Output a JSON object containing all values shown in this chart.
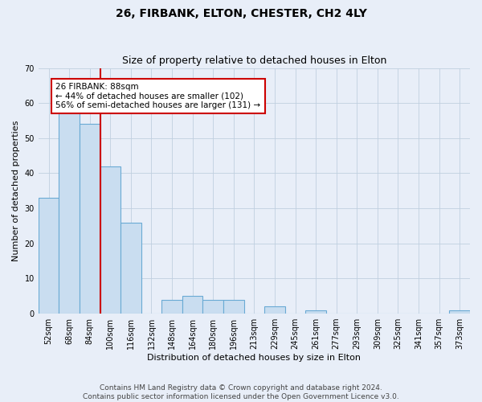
{
  "title": "26, FIRBANK, ELTON, CHESTER, CH2 4LY",
  "subtitle": "Size of property relative to detached houses in Elton",
  "xlabel": "Distribution of detached houses by size in Elton",
  "ylabel": "Number of detached properties",
  "categories": [
    "52sqm",
    "68sqm",
    "84sqm",
    "100sqm",
    "116sqm",
    "132sqm",
    "148sqm",
    "164sqm",
    "180sqm",
    "196sqm",
    "213sqm",
    "229sqm",
    "245sqm",
    "261sqm",
    "277sqm",
    "293sqm",
    "309sqm",
    "325sqm",
    "341sqm",
    "357sqm",
    "373sqm"
  ],
  "values": [
    33,
    58,
    54,
    42,
    26,
    0,
    4,
    5,
    4,
    4,
    0,
    2,
    0,
    1,
    0,
    0,
    0,
    0,
    0,
    0,
    1
  ],
  "bar_color": "#c9ddf0",
  "bar_edge_color": "#6aaad4",
  "red_line_x": 2.5,
  "annotation_text": "26 FIRBANK: 88sqm\n← 44% of detached houses are smaller (102)\n56% of semi-detached houses are larger (131) →",
  "annotation_box_color": "#ffffff",
  "annotation_box_edge_color": "#cc0000",
  "ylim": [
    0,
    70
  ],
  "yticks": [
    0,
    10,
    20,
    30,
    40,
    50,
    60,
    70
  ],
  "footer": "Contains HM Land Registry data © Crown copyright and database right 2024.\nContains public sector information licensed under the Open Government Licence v3.0.",
  "background_color": "#e8eef8",
  "plot_background_color": "#e8eef8",
  "grid_color": "#c0cfe0",
  "title_fontsize": 10,
  "subtitle_fontsize": 9,
  "axis_label_fontsize": 8,
  "tick_fontsize": 7,
  "footer_fontsize": 6.5,
  "annotation_fontsize": 7.5
}
